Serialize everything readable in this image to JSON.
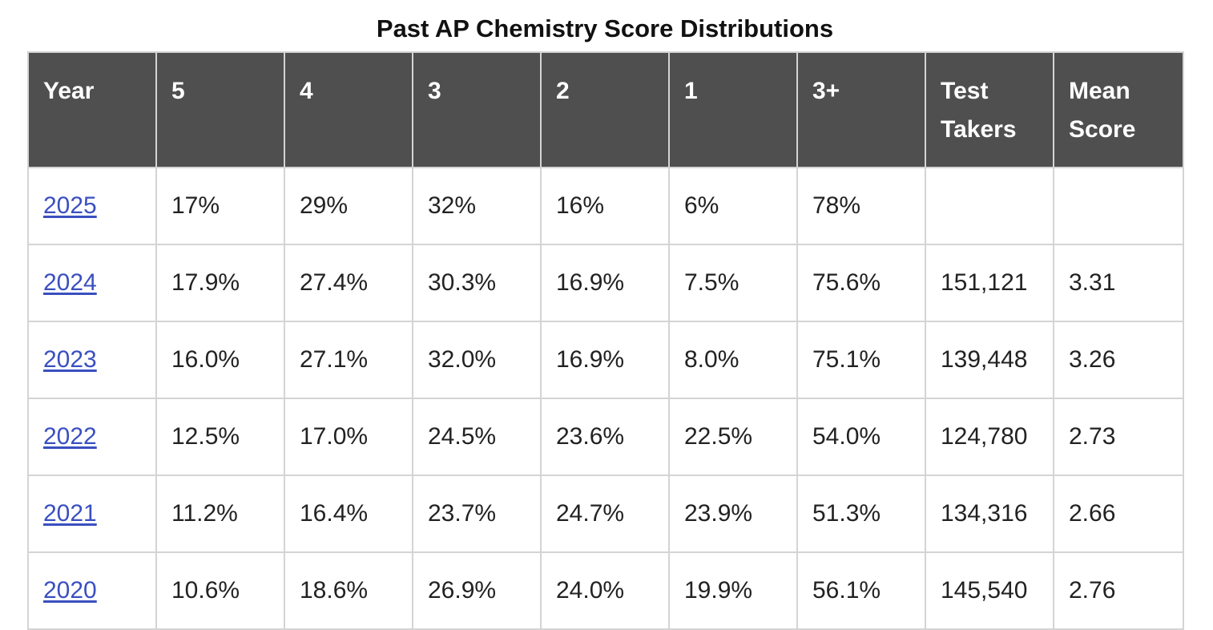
{
  "title": "Past AP Chemistry Score Distributions",
  "table": {
    "headers": [
      "Year",
      "5",
      "4",
      "3",
      "2",
      "1",
      "3+",
      "Test Takers",
      "Mean Score"
    ],
    "rows": [
      [
        "2025",
        "17%",
        "29%",
        "32%",
        "16%",
        "6%",
        "78%",
        "",
        ""
      ],
      [
        "2024",
        "17.9%",
        "27.4%",
        "30.3%",
        "16.9%",
        "7.5%",
        "75.6%",
        "151,121",
        "3.31"
      ],
      [
        "2023",
        "16.0%",
        "27.1%",
        "32.0%",
        "16.9%",
        "8.0%",
        "75.1%",
        "139,448",
        "3.26"
      ],
      [
        "2022",
        "12.5%",
        "17.0%",
        "24.5%",
        "23.6%",
        "22.5%",
        "54.0%",
        "124,780",
        "2.73"
      ],
      [
        "2021",
        "11.2%",
        "16.4%",
        "23.7%",
        "24.7%",
        "23.9%",
        "51.3%",
        "134,316",
        "2.66"
      ],
      [
        "2020",
        "10.6%",
        "18.6%",
        "26.9%",
        "24.0%",
        "19.9%",
        "56.1%",
        "145,540",
        "2.76"
      ]
    ]
  },
  "colors": {
    "header_bg": "#4f4f4f",
    "header_text": "#ffffff",
    "link": "#3a4fc0",
    "border": "#d4d4d4"
  }
}
